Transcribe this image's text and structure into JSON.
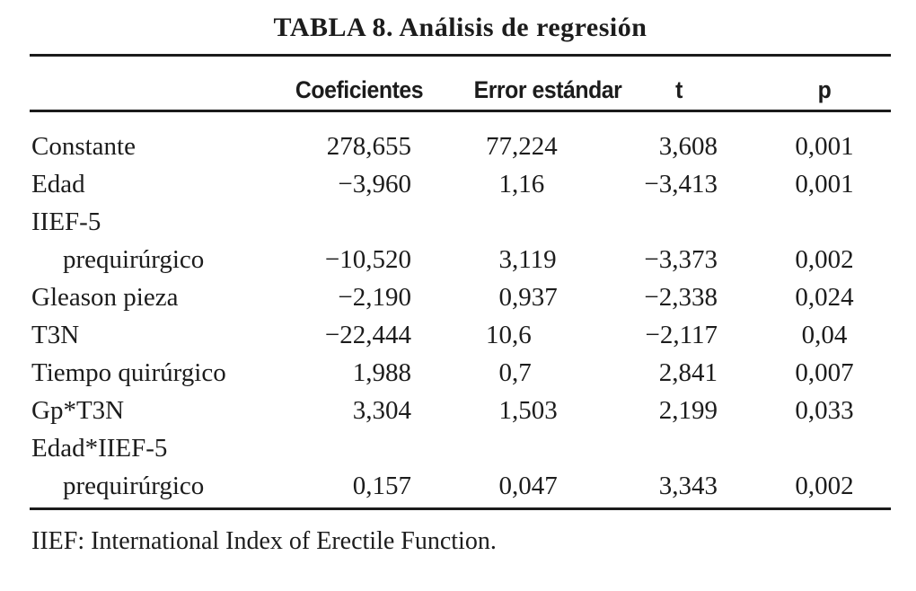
{
  "title": "TABLA 8. Análisis de regresión",
  "table": {
    "columns": [
      "",
      "Coeficientes",
      "Error estándar",
      "t",
      "p"
    ],
    "rows": [
      {
        "label": "Constante",
        "indent": false,
        "coef": "278,655",
        "err": "77,224",
        "t": "3,608",
        "p": "0,001"
      },
      {
        "label": "Edad",
        "indent": false,
        "coef": "−3,960",
        "err": "1,16",
        "t": "−3,413",
        "p": "0,001"
      },
      {
        "label": "IIEF-5",
        "indent": false,
        "coef": "",
        "err": "",
        "t": "",
        "p": ""
      },
      {
        "label": "prequirúrgico",
        "indent": true,
        "coef": "−10,520",
        "err": "3,119",
        "t": "−3,373",
        "p": "0,002"
      },
      {
        "label": "Gleason pieza",
        "indent": false,
        "coef": "−2,190",
        "err": "0,937",
        "t": "−2,338",
        "p": "0,024"
      },
      {
        "label": "T3N",
        "indent": false,
        "coef": "−22,444",
        "err": "10,6",
        "t": "−2,117",
        "p": "0,04"
      },
      {
        "label": "Tiempo quirúrgico",
        "indent": false,
        "coef": "1,988",
        "err": "0,7",
        "t": "2,841",
        "p": "0,007"
      },
      {
        "label": "Gp*T3N",
        "indent": false,
        "coef": "3,304",
        "err": "1,503",
        "t": "2,199",
        "p": "0,033"
      },
      {
        "label": "Edad*IIEF-5",
        "indent": false,
        "coef": "",
        "err": "",
        "t": "",
        "p": ""
      },
      {
        "label": "prequirúrgico",
        "indent": true,
        "coef": "0,157",
        "err": "0,047",
        "t": "3,343",
        "p": "0,002"
      }
    ],
    "footnote": "IIEF: International Index of Erectile Function."
  },
  "colors": {
    "background": "#ffffff",
    "text": "#1c1c1c",
    "rule": "#1b1b1b"
  }
}
